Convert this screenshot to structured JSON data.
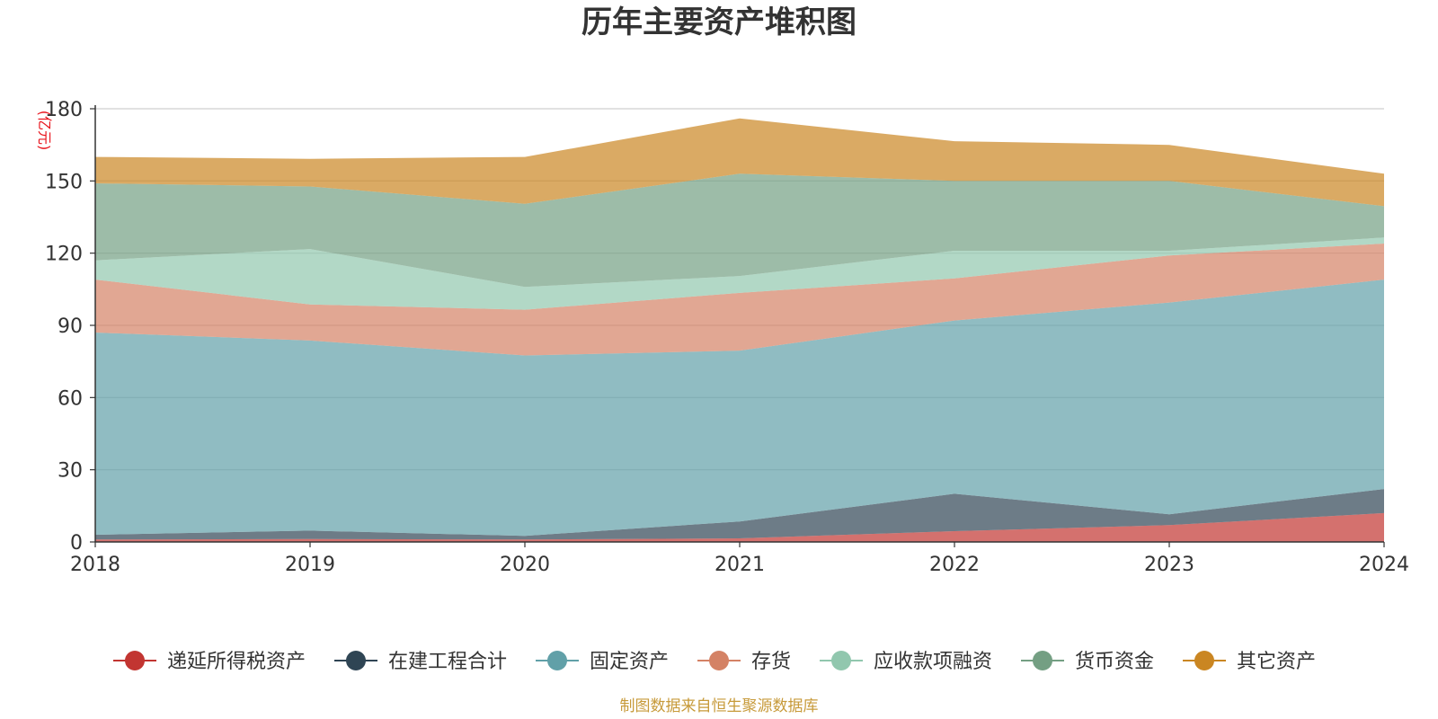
{
  "chart_data": {
    "type": "area",
    "stacked": true,
    "title": "历年主要资产堆积图",
    "unit": "(亿元)",
    "source": "制图数据来自恒生聚源数据库",
    "x": [
      "2018",
      "2019",
      "2020",
      "2021",
      "2022",
      "2023",
      "2024"
    ],
    "ylim": [
      0,
      180
    ],
    "yticks": [
      0,
      30,
      60,
      90,
      120,
      150,
      180
    ],
    "grid": true,
    "legend_position": "bottom",
    "series": [
      {
        "name": "递延所得税资产",
        "color": "#c23531",
        "values": [
          1.0,
          1.2,
          1.0,
          1.5,
          4.5,
          7.0,
          12.0
        ]
      },
      {
        "name": "在建工程合计",
        "color": "#2f4554",
        "values": [
          2.0,
          3.5,
          1.5,
          7.0,
          15.5,
          4.5,
          10.0
        ]
      },
      {
        "name": "固定资产",
        "color": "#61a0a8",
        "values": [
          84.0,
          79.0,
          75.0,
          71.0,
          72.0,
          88.0,
          87.0
        ]
      },
      {
        "name": "存货",
        "color": "#d48265",
        "values": [
          22.0,
          15.0,
          19.0,
          24.0,
          17.5,
          19.5,
          15.0
        ]
      },
      {
        "name": "应收款项融资",
        "color": "#91c7ae",
        "values": [
          8.0,
          23.0,
          9.5,
          7.0,
          11.5,
          2.0,
          2.5
        ]
      },
      {
        "name": "货币资金",
        "color": "#749f83",
        "values": [
          32.0,
          26.0,
          34.5,
          42.5,
          29.0,
          29.0,
          13.0
        ]
      },
      {
        "name": "其它资产",
        "color": "#ca8622",
        "values": [
          11.0,
          11.5,
          19.5,
          23.0,
          16.5,
          15.0,
          13.5
        ]
      }
    ]
  }
}
